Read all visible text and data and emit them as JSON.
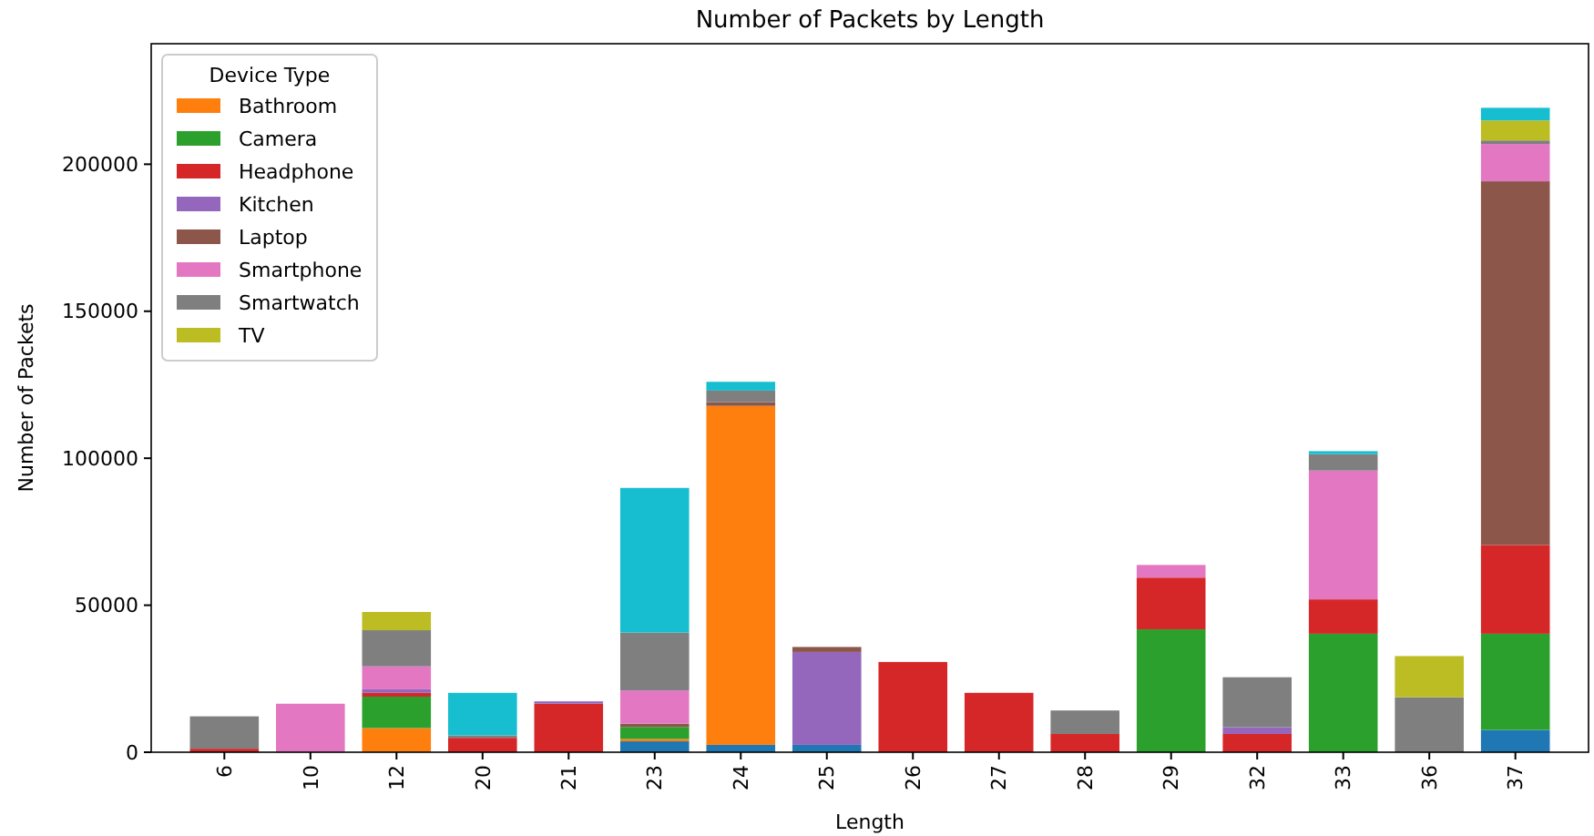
{
  "chart_data": {
    "type": "bar",
    "stacked": true,
    "title": "Number of Packets by Length",
    "xlabel": "Length",
    "ylabel": "Number of Packets",
    "legend_title": "Device Type",
    "legend": "top left",
    "categories": [
      "6",
      "10",
      "12",
      "20",
      "21",
      "23",
      "24",
      "25",
      "26",
      "27",
      "28",
      "29",
      "32",
      "33",
      "36",
      "37"
    ],
    "ylim": [
      0,
      241000
    ],
    "yticks": [
      0,
      50000,
      100000,
      150000,
      200000
    ],
    "series": [
      {
        "color": "#1f77b4",
        "values": [
          0,
          0,
          0,
          0,
          0,
          3700,
          2500,
          2500,
          0,
          0,
          0,
          0,
          0,
          0,
          0,
          7600
        ]
      },
      {
        "name": "Bathroom",
        "color": "#ff7f0e",
        "values": [
          0,
          0,
          8200,
          0,
          0,
          800,
          115300,
          0,
          0,
          0,
          0,
          0,
          0,
          0,
          0,
          0
        ]
      },
      {
        "name": "Camera",
        "color": "#2ca02c",
        "values": [
          0,
          0,
          10700,
          0,
          0,
          4100,
          0,
          0,
          0,
          0,
          0,
          41800,
          0,
          40300,
          0,
          32700
        ]
      },
      {
        "name": "Headphone",
        "color": "#d62728",
        "values": [
          1200,
          0,
          1300,
          4900,
          16500,
          0,
          0,
          0,
          30700,
          20200,
          6200,
          17600,
          6200,
          11700,
          0,
          30200
        ]
      },
      {
        "name": "Kitchen",
        "color": "#9467bd",
        "values": [
          0,
          0,
          1200,
          0,
          800,
          0,
          0,
          31600,
          0,
          0,
          0,
          0,
          2300,
          0,
          0,
          0
        ]
      },
      {
        "name": "Laptop",
        "color": "#8c564b",
        "values": [
          0,
          0,
          0,
          0,
          0,
          1100,
          1300,
          1700,
          0,
          0,
          0,
          0,
          0,
          0,
          0,
          123700
        ]
      },
      {
        "name": "Smartphone",
        "color": "#e377c2",
        "values": [
          0,
          16500,
          7800,
          0,
          0,
          11300,
          0,
          0,
          0,
          0,
          0,
          4300,
          0,
          43800,
          0,
          12700
        ]
      },
      {
        "name": "Smartwatch",
        "color": "#7f7f7f",
        "values": [
          11000,
          0,
          12300,
          800,
          0,
          19700,
          3900,
          0,
          0,
          0,
          8000,
          0,
          17000,
          5600,
          18700,
          1200
        ]
      },
      {
        "name": "TV",
        "color": "#bcbd22",
        "values": [
          0,
          0,
          6200,
          0,
          0,
          0,
          0,
          0,
          0,
          0,
          0,
          0,
          0,
          0,
          14000,
          6800
        ]
      },
      {
        "color": "#17becf",
        "values": [
          0,
          0,
          0,
          14500,
          0,
          49200,
          3000,
          0,
          0,
          0,
          0,
          0,
          0,
          1000,
          0,
          4300
        ]
      }
    ]
  }
}
